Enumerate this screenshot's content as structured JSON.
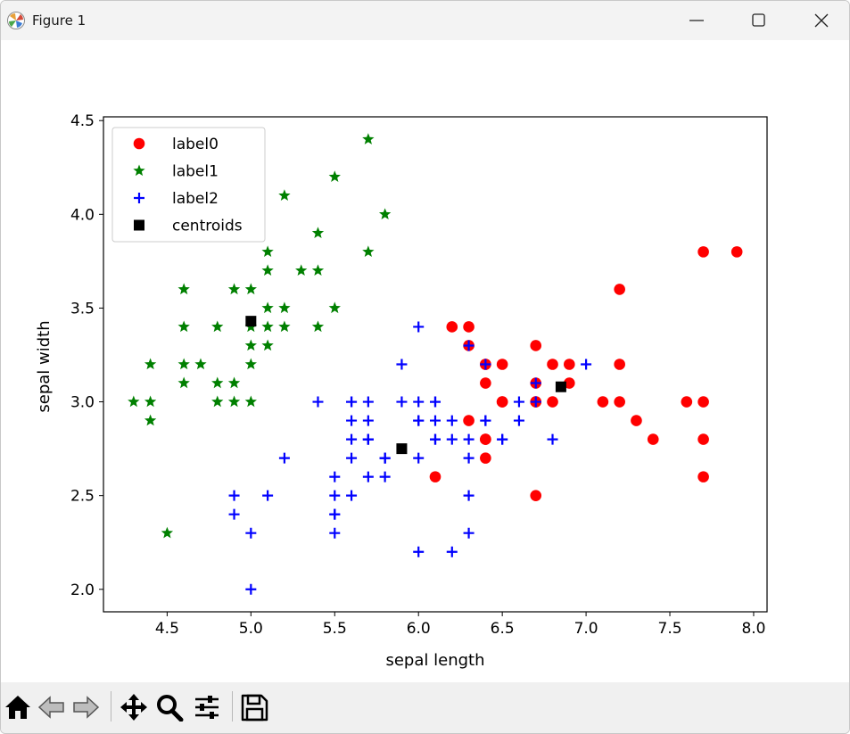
{
  "window": {
    "title": "Figure 1"
  },
  "titlebar_icons": [
    "matplotlib-app-icon",
    "minimize-icon",
    "maximize-icon",
    "close-icon"
  ],
  "toolbar": {
    "buttons": [
      {
        "name": "home",
        "icon": "home-icon"
      },
      {
        "name": "back",
        "icon": "back-arrow-icon"
      },
      {
        "name": "forward",
        "icon": "forward-arrow-icon"
      },
      {
        "name": "pan",
        "icon": "move-arrows-icon"
      },
      {
        "name": "zoom",
        "icon": "magnifier-icon"
      },
      {
        "name": "configure-subplots",
        "icon": "sliders-icon"
      },
      {
        "name": "save",
        "icon": "floppy-disk-icon"
      }
    ]
  },
  "colors": {
    "label0": "#ff0000",
    "label1": "#008000",
    "label2": "#0000ff",
    "centroids": "#000000"
  },
  "chart_data": {
    "type": "scatter",
    "title": "",
    "xlabel": "sepal length",
    "ylabel": "sepal width",
    "xlim": [
      4.12,
      8.08
    ],
    "ylim": [
      1.88,
      4.52
    ],
    "xticks": [
      4.5,
      5.0,
      5.5,
      6.0,
      6.5,
      7.0,
      7.5,
      8.0
    ],
    "xtick_labels": [
      "4.5",
      "5.0",
      "5.5",
      "6.0",
      "6.5",
      "7.0",
      "7.5",
      "8.0"
    ],
    "yticks": [
      2.0,
      2.5,
      3.0,
      3.5,
      4.0,
      4.5
    ],
    "ytick_labels": [
      "2.0",
      "2.5",
      "3.0",
      "3.5",
      "4.0",
      "4.5"
    ],
    "grid": false,
    "legend_position": "top-left",
    "series": [
      {
        "name": "label0",
        "marker": "circle",
        "color": "#ff0000",
        "points": [
          [
            6.3,
            3.3
          ],
          [
            7.1,
            3.0
          ],
          [
            6.3,
            2.9
          ],
          [
            6.5,
            3.0
          ],
          [
            7.6,
            3.0
          ],
          [
            7.3,
            2.9
          ],
          [
            6.7,
            2.5
          ],
          [
            7.2,
            3.6
          ],
          [
            6.5,
            3.2
          ],
          [
            6.4,
            2.7
          ],
          [
            6.8,
            3.0
          ],
          [
            6.4,
            3.2
          ],
          [
            6.5,
            3.0
          ],
          [
            7.7,
            3.8
          ],
          [
            7.7,
            2.6
          ],
          [
            6.9,
            3.2
          ],
          [
            7.7,
            2.8
          ],
          [
            6.7,
            3.3
          ],
          [
            7.2,
            3.2
          ],
          [
            6.1,
            2.6
          ],
          [
            6.4,
            2.8
          ],
          [
            7.2,
            3.0
          ],
          [
            7.4,
            2.8
          ],
          [
            7.9,
            3.8
          ],
          [
            6.4,
            2.8
          ],
          [
            6.3,
            3.4
          ],
          [
            7.7,
            3.0
          ],
          [
            6.4,
            3.1
          ],
          [
            6.9,
            3.1
          ],
          [
            6.7,
            3.1
          ],
          [
            6.7,
            3.0
          ],
          [
            6.2,
            3.4
          ],
          [
            6.4,
            3.2
          ],
          [
            6.8,
            3.2
          ],
          [
            6.7,
            3.0
          ]
        ]
      },
      {
        "name": "label1",
        "marker": "star",
        "color": "#008000",
        "points": [
          [
            5.1,
            3.5
          ],
          [
            4.9,
            3.0
          ],
          [
            4.7,
            3.2
          ],
          [
            4.6,
            3.1
          ],
          [
            5.0,
            3.6
          ],
          [
            5.4,
            3.9
          ],
          [
            4.6,
            3.4
          ],
          [
            5.0,
            3.4
          ],
          [
            4.4,
            2.9
          ],
          [
            4.9,
            3.1
          ],
          [
            5.4,
            3.7
          ],
          [
            4.8,
            3.4
          ],
          [
            4.8,
            3.0
          ],
          [
            4.3,
            3.0
          ],
          [
            5.8,
            4.0
          ],
          [
            5.7,
            4.4
          ],
          [
            5.1,
            3.8
          ],
          [
            5.7,
            3.8
          ],
          [
            5.1,
            3.7
          ],
          [
            4.6,
            3.6
          ],
          [
            5.1,
            3.3
          ],
          [
            5.0,
            3.0
          ],
          [
            5.2,
            3.5
          ],
          [
            5.2,
            3.4
          ],
          [
            4.8,
            3.1
          ],
          [
            5.4,
            3.4
          ],
          [
            5.2,
            4.1
          ],
          [
            5.5,
            4.2
          ],
          [
            5.0,
            3.2
          ],
          [
            5.5,
            3.5
          ],
          [
            4.4,
            3.0
          ],
          [
            4.5,
            2.3
          ],
          [
            4.4,
            3.2
          ],
          [
            5.1,
            3.4
          ],
          [
            5.3,
            3.7
          ],
          [
            4.6,
            3.2
          ],
          [
            5.0,
            3.3
          ],
          [
            4.9,
            3.6
          ]
        ]
      },
      {
        "name": "label2",
        "marker": "plus",
        "color": "#0000ff",
        "points": [
          [
            7.0,
            3.2
          ],
          [
            6.4,
            3.2
          ],
          [
            5.5,
            2.3
          ],
          [
            6.5,
            2.8
          ],
          [
            5.7,
            2.8
          ],
          [
            6.3,
            3.3
          ],
          [
            4.9,
            2.4
          ],
          [
            6.6,
            2.9
          ],
          [
            5.2,
            2.7
          ],
          [
            5.0,
            2.0
          ],
          [
            5.9,
            3.0
          ],
          [
            6.0,
            2.2
          ],
          [
            6.1,
            2.9
          ],
          [
            5.6,
            2.9
          ],
          [
            5.6,
            3.0
          ],
          [
            5.8,
            2.7
          ],
          [
            6.2,
            2.2
          ],
          [
            5.6,
            2.5
          ],
          [
            5.9,
            3.2
          ],
          [
            6.1,
            2.8
          ],
          [
            6.3,
            2.5
          ],
          [
            6.6,
            3.0
          ],
          [
            6.8,
            2.8
          ],
          [
            6.7,
            3.0
          ],
          [
            6.0,
            2.9
          ],
          [
            5.7,
            2.6
          ],
          [
            5.5,
            2.4
          ],
          [
            5.5,
            2.4
          ],
          [
            5.8,
            2.7
          ],
          [
            6.0,
            2.7
          ],
          [
            5.4,
            3.0
          ],
          [
            6.0,
            3.4
          ],
          [
            6.7,
            3.1
          ],
          [
            6.3,
            2.3
          ],
          [
            5.6,
            3.0
          ],
          [
            5.5,
            2.5
          ],
          [
            5.5,
            2.6
          ],
          [
            6.1,
            3.0
          ],
          [
            5.8,
            2.6
          ],
          [
            5.0,
            2.3
          ],
          [
            5.6,
            2.7
          ],
          [
            5.7,
            3.0
          ],
          [
            5.7,
            2.9
          ],
          [
            6.2,
            2.9
          ],
          [
            5.1,
            2.5
          ],
          [
            5.7,
            2.8
          ],
          [
            5.8,
            2.7
          ],
          [
            4.9,
            2.5
          ],
          [
            6.0,
            3.0
          ],
          [
            6.3,
            2.7
          ],
          [
            6.2,
            2.8
          ],
          [
            6.1,
            3.0
          ],
          [
            6.3,
            2.8
          ],
          [
            6.4,
            2.9
          ],
          [
            6.0,
            2.9
          ],
          [
            5.7,
            2.8
          ],
          [
            6.5,
            2.8
          ],
          [
            5.6,
            2.8
          ],
          [
            6.1,
            2.8
          ],
          [
            6.4,
            2.9
          ]
        ]
      },
      {
        "name": "centroids",
        "marker": "square",
        "color": "#000000",
        "points": [
          [
            5.0,
            3.43
          ],
          [
            5.9,
            2.75
          ],
          [
            6.85,
            3.08
          ]
        ]
      }
    ]
  }
}
